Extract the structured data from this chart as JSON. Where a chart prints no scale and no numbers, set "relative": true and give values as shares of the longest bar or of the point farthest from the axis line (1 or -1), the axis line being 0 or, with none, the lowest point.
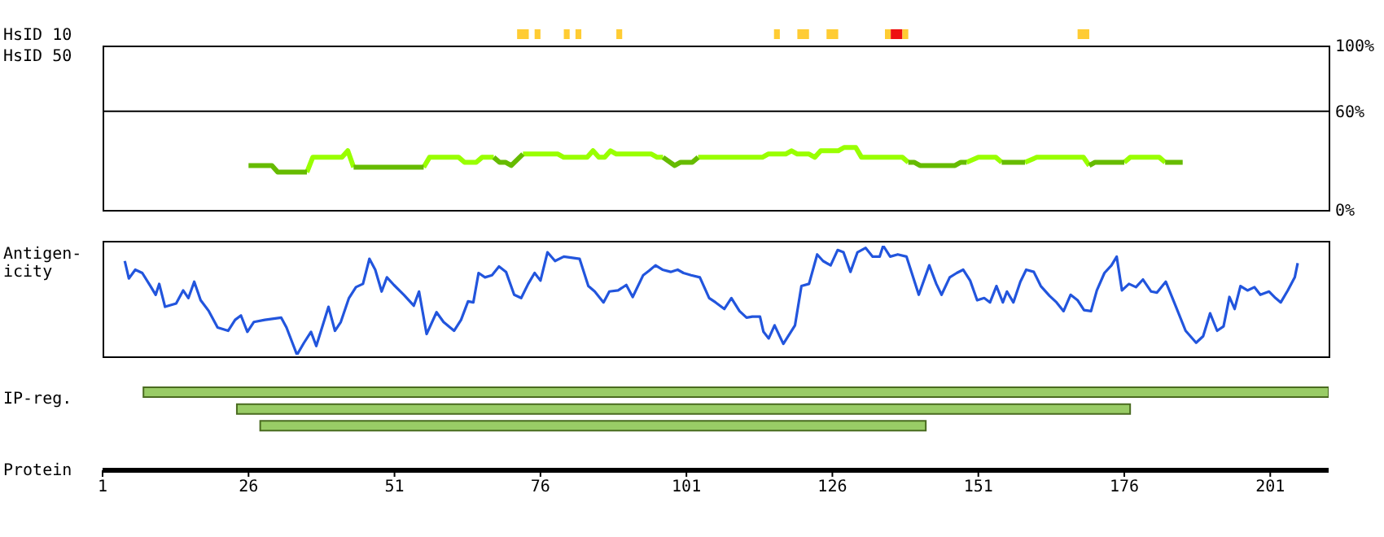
{
  "chart_data": [
    {
      "type": "bar",
      "orientation": "horizontal",
      "categories": [
        "HsID 10",
        "HsID 50"
      ],
      "xlim": [
        1,
        211
      ],
      "tick_labels": "y",
      "series": [
        {
          "color": "#ffcc33",
          "values": [
            2,
            null
          ],
          "base": [
            72,
            null
          ]
        },
        {
          "color": "#ffcc33",
          "values": [
            1,
            null
          ],
          "base": [
            75,
            null
          ]
        },
        {
          "color": "#ffcc33",
          "values": [
            1,
            null
          ],
          "base": [
            80,
            null
          ]
        },
        {
          "color": "#ffcc33",
          "values": [
            1,
            null
          ],
          "base": [
            82,
            null
          ]
        },
        {
          "color": "#ffcc33",
          "values": [
            1,
            null
          ],
          "base": [
            89,
            null
          ]
        },
        {
          "color": "#ffcc33",
          "values": [
            1,
            null
          ],
          "base": [
            116,
            null
          ]
        },
        {
          "color": "#ffcc33",
          "values": [
            2,
            null
          ],
          "base": [
            120,
            null
          ]
        },
        {
          "color": "#ffcc33",
          "values": [
            2,
            null
          ],
          "base": [
            125,
            null
          ]
        },
        {
          "color": "#ffcc33",
          "values": [
            1,
            null
          ],
          "base": [
            135,
            null
          ]
        },
        {
          "color": "#ee1111",
          "values": [
            2,
            null
          ],
          "base": [
            136,
            null
          ]
        },
        {
          "color": "#ffcc33",
          "values": [
            1,
            null
          ],
          "base": [
            138,
            null
          ]
        },
        {
          "color": "#ffcc33",
          "values": [
            2,
            null
          ],
          "base": [
            168,
            null
          ]
        }
      ]
    },
    {
      "type": "line",
      "xlim": [
        1,
        211
      ],
      "ylim": [
        0,
        100
      ],
      "yticks": [
        {
          "value": 0,
          "label": "0%"
        },
        {
          "value": 60,
          "label": "60%"
        },
        {
          "value": 100,
          "label": "100%"
        }
      ],
      "tick_labels": "y",
      "ref_lines": [
        {
          "axis": "y",
          "value": 60,
          "color": "#000000"
        }
      ],
      "series": [
        {
          "color": "#99ff00",
          "x": [
            36,
            37,
            42,
            43,
            44,
            50,
            56,
            57,
            62,
            63,
            65,
            66,
            68,
            70,
            73,
            79,
            80,
            84,
            85,
            86,
            87,
            88,
            89,
            95,
            96,
            97,
            100,
            103,
            114,
            115,
            118,
            119,
            120,
            122,
            123,
            124,
            127,
            128,
            130,
            131,
            138,
            139,
            145,
            149,
            151,
            154,
            155,
            157,
            159,
            161,
            169,
            170,
            173,
            176,
            177,
            182,
            183
          ],
          "values": [
            23,
            32,
            32,
            36,
            26,
            null,
            26,
            32,
            32,
            29,
            29,
            32,
            32,
            null,
            34,
            34,
            32,
            32,
            36,
            32,
            32,
            36,
            34,
            34,
            32,
            32,
            null,
            32,
            32,
            34,
            34,
            36,
            34,
            34,
            32,
            36,
            36,
            38,
            38,
            32,
            32,
            29,
            null,
            29,
            32,
            32,
            29,
            null,
            29,
            32,
            32,
            27,
            null,
            29,
            32,
            32,
            29
          ]
        },
        {
          "color": "#66bb00",
          "x": [
            26,
            30,
            31,
            36,
            40,
            44,
            56,
            60,
            68,
            69,
            70,
            71,
            73,
            85,
            97,
            99,
            100,
            102,
            103,
            120,
            139,
            140,
            141,
            147,
            148,
            149,
            152,
            155,
            159,
            165,
            170,
            171,
            176,
            180,
            183,
            186
          ],
          "values": [
            27,
            27,
            23,
            23,
            null,
            26,
            26,
            null,
            32,
            29,
            29,
            27,
            34,
            null,
            32,
            27,
            29,
            29,
            32,
            null,
            29,
            29,
            27,
            27,
            29,
            29,
            null,
            29,
            29,
            null,
            27,
            29,
            29,
            null,
            29,
            29
          ]
        }
      ]
    },
    {
      "type": "line",
      "relative": true,
      "ylabel": "Antigen-icity",
      "xlim": [
        1,
        211
      ],
      "tick_labels": false,
      "series": [
        {
          "color": "#2255dd",
          "x": [
            4.8,
            5.5,
            6.6,
            7.8,
            9.2,
            10.1,
            10.7,
            11.7,
            13.6,
            14.8,
            15.7,
            16.7,
            17.8,
            19.2,
            20.7,
            22.5,
            23.7,
            24.7,
            25.8,
            26.9,
            28.8,
            31.6,
            32.5,
            34.3,
            35.5,
            36.7,
            37.6,
            39.7,
            40.8,
            41.8,
            43.2,
            44.4,
            45.6,
            46.7,
            47.7,
            48.8,
            49.7,
            50.9,
            52.6,
            54.3,
            55.2,
            56.5,
            58.2,
            59.4,
            61.2,
            62.4,
            63.6,
            64.5,
            65.4,
            66.5,
            67.7,
            68.9,
            70.1,
            71.5,
            72.7,
            73.9,
            75.0,
            76.0,
            77.2,
            78.5,
            80.0,
            82.7,
            84.2,
            85.3,
            86.8,
            87.8,
            89.3,
            90.7,
            91.8,
            93.6,
            94.6,
            95.7,
            96.9,
            98.3,
            99.5,
            100.5,
            101.8,
            103.3,
            104.9,
            106.0,
            107.5,
            108.7,
            110.1,
            111.3,
            112.3,
            113.6,
            114.2,
            115.1,
            116.1,
            117.6,
            119.6,
            120.7,
            122.0,
            123.4,
            124.4,
            125.7,
            126.9,
            127.9,
            129.1,
            130.3,
            131.7,
            132.9,
            134.1,
            134.7,
            135.9,
            137.2,
            138.7,
            140.8,
            142.6,
            143.8,
            144.7,
            146.1,
            147.3,
            148.4,
            149.6,
            150.8,
            152.0,
            153.0,
            154.1,
            155.2,
            155.9,
            157.0,
            158.2,
            159.2,
            160.5,
            161.7,
            163.2,
            164.4,
            165.6,
            166.8,
            168.0,
            169.1,
            170.3,
            171.3,
            172.6,
            173.8,
            174.7,
            175.6,
            176.8,
            178.0,
            179.2,
            180.6,
            181.6,
            183.1,
            184.7,
            186.5,
            188.3,
            189.5,
            190.7,
            191.9,
            193.0,
            194.0,
            194.9,
            195.9,
            197.1,
            198.3,
            199.3,
            200.8,
            201.9,
            202.8,
            204.0,
            205.2,
            205.7
          ],
          "values": [
            0.86,
            0.7,
            0.78,
            0.75,
            0.63,
            0.55,
            0.65,
            0.44,
            0.47,
            0.59,
            0.52,
            0.67,
            0.5,
            0.4,
            0.25,
            0.22,
            0.32,
            0.36,
            0.21,
            0.3,
            0.32,
            0.34,
            0.25,
            0,
            0.11,
            0.21,
            0.08,
            0.44,
            0.22,
            0.3,
            0.52,
            0.62,
            0.65,
            0.88,
            0.78,
            0.58,
            0.71,
            0.64,
            0.55,
            0.45,
            0.58,
            0.19,
            0.39,
            0.3,
            0.22,
            0.32,
            0.49,
            0.48,
            0.75,
            0.71,
            0.73,
            0.81,
            0.76,
            0.55,
            0.52,
            0.65,
            0.75,
            0.68,
            0.94,
            0.86,
            0.9,
            0.88,
            0.63,
            0.58,
            0.48,
            0.58,
            0.59,
            0.64,
            0.53,
            0.73,
            0.77,
            0.82,
            0.78,
            0.76,
            0.78,
            0.75,
            0.73,
            0.71,
            0.52,
            0.48,
            0.42,
            0.52,
            0.4,
            0.34,
            0.35,
            0.35,
            0.21,
            0.15,
            0.27,
            0.1,
            0.27,
            0.63,
            0.65,
            0.92,
            0.86,
            0.82,
            0.96,
            0.94,
            0.76,
            0.94,
            0.98,
            0.9,
            0.9,
            1,
            0.9,
            0.92,
            0.9,
            0.55,
            0.82,
            0.65,
            0.55,
            0.71,
            0.75,
            0.78,
            0.68,
            0.5,
            0.52,
            0.48,
            0.63,
            0.48,
            0.58,
            0.48,
            0.67,
            0.78,
            0.76,
            0.63,
            0.54,
            0.48,
            0.4,
            0.55,
            0.5,
            0.41,
            0.4,
            0.59,
            0.75,
            0.82,
            0.9,
            0.59,
            0.65,
            0.62,
            0.69,
            0.58,
            0.57,
            0.67,
            0.46,
            0.22,
            0.11,
            0.17,
            0.38,
            0.22,
            0.26,
            0.53,
            0.42,
            0.63,
            0.59,
            0.62,
            0.55,
            0.58,
            0.52,
            0.48,
            0.59,
            0.71,
            0.84
          ]
        }
      ]
    },
    {
      "type": "bar",
      "orientation": "horizontal",
      "categories": [
        null,
        null,
        null
      ],
      "ylabel": "IP-reg.",
      "xlabel": "Protein",
      "xlim": [
        1,
        211
      ],
      "xticks": [
        1,
        26,
        51,
        76,
        101,
        126,
        151,
        176,
        201
      ],
      "series": [
        {
          "color": "#99cc66",
          "values": [
            203,
            153,
            114
          ],
          "base": [
            8,
            24,
            28
          ]
        }
      ]
    }
  ]
}
